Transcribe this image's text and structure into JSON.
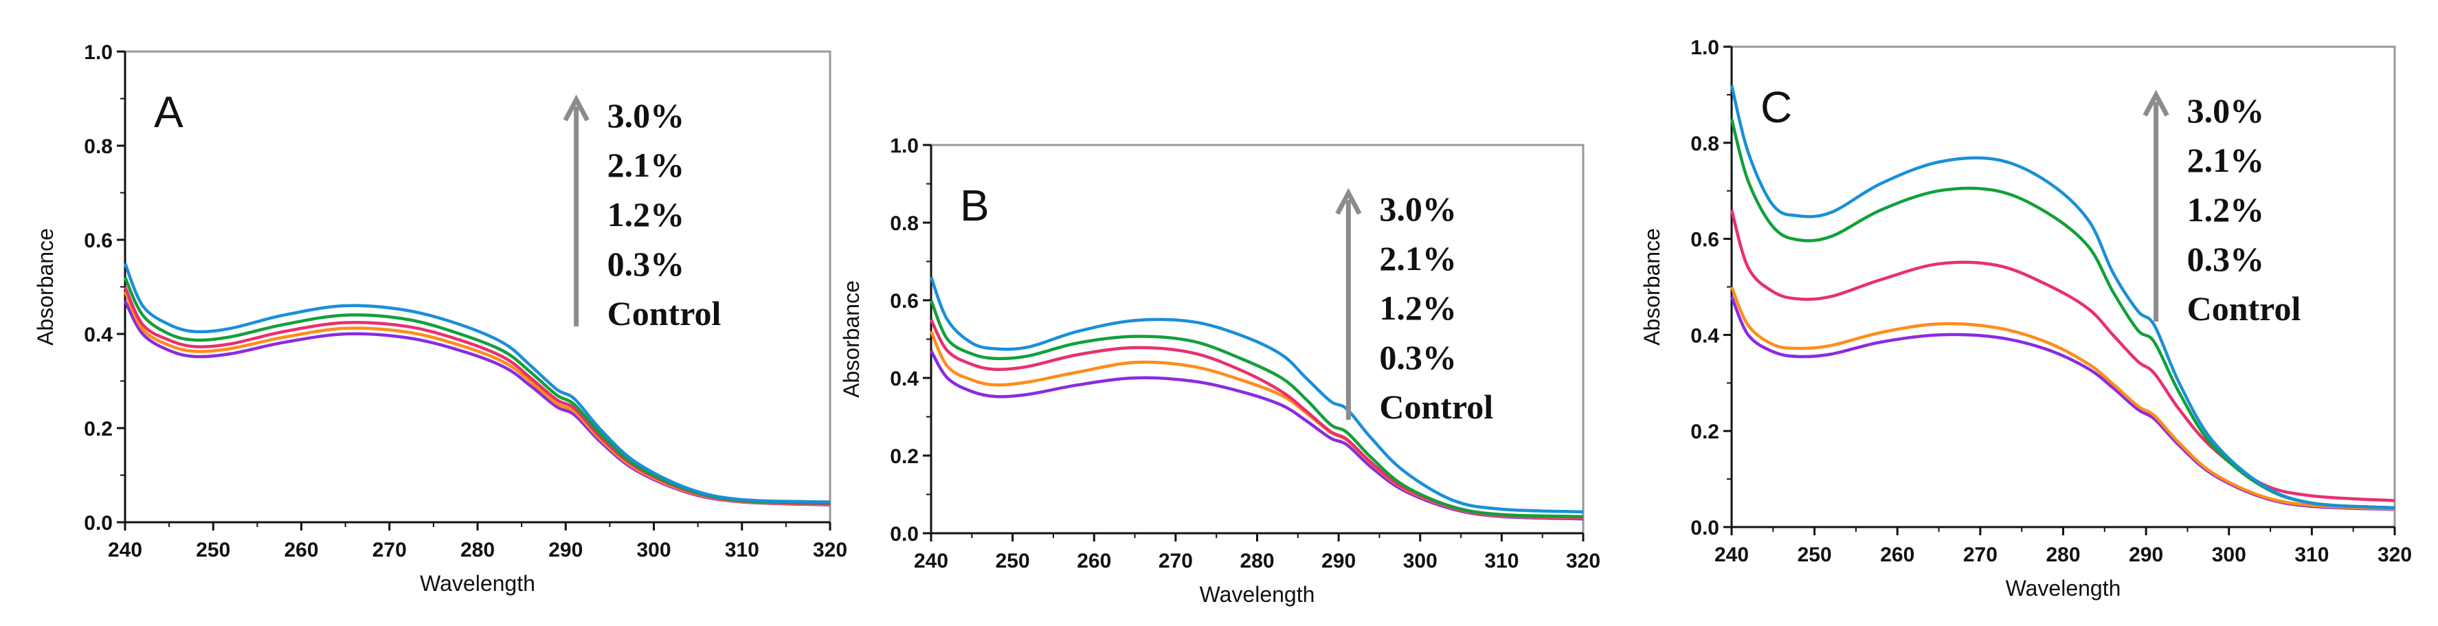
{
  "chart_data": {
    "type": "line",
    "x": [
      240,
      242,
      245,
      248,
      252,
      258,
      265,
      272,
      278,
      283,
      286,
      289,
      291,
      294,
      298,
      304,
      310,
      320
    ],
    "xlabel": "Wavelength",
    "ylabel": "Absorbance",
    "xlim": [
      240,
      320
    ],
    "ylim": [
      0,
      1.0
    ],
    "xticks": [
      "240",
      "250",
      "260",
      "270",
      "280",
      "290",
      "300",
      "310",
      "320"
    ],
    "yticks": [
      "0.0",
      "0.2",
      "0.4",
      "0.6",
      "0.8",
      "1.0"
    ],
    "legend_labels": [
      "3.0%",
      "2.1%",
      "1.2%",
      "0.3%",
      "Control"
    ],
    "legend_note": "arrow indicates increasing concentration",
    "series_colors": {
      "Control": "#8a2be2",
      "0.3%": "#ff8c1a",
      "1.2%": "#e8306e",
      "2.1%": "#12a03a",
      "3.0%": "#1a8fd8"
    },
    "arrow_color": "#8c8c8c",
    "panels": [
      {
        "label": "A",
        "series": [
          {
            "name": "Control",
            "values": [
              0.47,
              0.4,
              0.365,
              0.352,
              0.358,
              0.382,
              0.4,
              0.392,
              0.365,
              0.33,
              0.29,
              0.245,
              0.228,
              0.17,
              0.11,
              0.062,
              0.043,
              0.037
            ]
          },
          {
            "name": "0.3%",
            "values": [
              0.49,
              0.41,
              0.376,
              0.363,
              0.369,
              0.393,
              0.412,
              0.404,
              0.376,
              0.34,
              0.299,
              0.252,
              0.235,
              0.175,
              0.113,
              0.064,
              0.044,
              0.038
            ]
          },
          {
            "name": "1.2%",
            "values": [
              0.5,
              0.42,
              0.387,
              0.373,
              0.379,
              0.405,
              0.424,
              0.416,
              0.387,
              0.35,
              0.307,
              0.26,
              0.242,
              0.18,
              0.117,
              0.066,
              0.045,
              0.039
            ]
          },
          {
            "name": "2.1%",
            "values": [
              0.52,
              0.44,
              0.4,
              0.387,
              0.394,
              0.42,
              0.44,
              0.431,
              0.4,
              0.363,
              0.319,
              0.27,
              0.25,
              0.187,
              0.121,
              0.068,
              0.046,
              0.041
            ]
          },
          {
            "name": "3.0%",
            "values": [
              0.55,
              0.46,
              0.42,
              0.405,
              0.412,
              0.44,
              0.46,
              0.45,
              0.42,
              0.38,
              0.333,
              0.282,
              0.262,
              0.196,
              0.127,
              0.071,
              0.048,
              0.043
            ]
          }
        ]
      },
      {
        "label": "B",
        "series": [
          {
            "name": "Control",
            "values": [
              0.47,
              0.4,
              0.365,
              0.352,
              0.358,
              0.382,
              0.4,
              0.392,
              0.365,
              0.33,
              0.29,
              0.245,
              0.228,
              0.17,
              0.11,
              0.062,
              0.043,
              0.037
            ]
          },
          {
            "name": "0.3%",
            "values": [
              0.52,
              0.43,
              0.395,
              0.382,
              0.39,
              0.415,
              0.44,
              0.43,
              0.395,
              0.355,
              0.31,
              0.26,
              0.24,
              0.18,
              0.115,
              0.065,
              0.045,
              0.04
            ]
          },
          {
            "name": "1.2%",
            "values": [
              0.55,
              0.47,
              0.435,
              0.422,
              0.43,
              0.46,
              0.478,
              0.465,
              0.42,
              0.365,
              0.315,
              0.262,
              0.242,
              0.182,
              0.117,
              0.066,
              0.046,
              0.041
            ]
          },
          {
            "name": "2.1%",
            "values": [
              0.6,
              0.5,
              0.462,
              0.45,
              0.457,
              0.49,
              0.507,
              0.495,
              0.45,
              0.4,
              0.345,
              0.28,
              0.26,
              0.195,
              0.123,
              0.068,
              0.048,
              0.043
            ]
          },
          {
            "name": "3.0%",
            "values": [
              0.66,
              0.55,
              0.49,
              0.475,
              0.48,
              0.52,
              0.548,
              0.545,
              0.51,
              0.46,
              0.4,
              0.34,
              0.32,
              0.245,
              0.16,
              0.085,
              0.062,
              0.055
            ]
          }
        ]
      },
      {
        "label": "C",
        "series": [
          {
            "name": "Control",
            "values": [
              0.48,
              0.4,
              0.365,
              0.355,
              0.36,
              0.385,
              0.4,
              0.395,
              0.37,
              0.33,
              0.29,
              0.245,
              0.225,
              0.17,
              0.11,
              0.062,
              0.043,
              0.037
            ]
          },
          {
            "name": "0.3%",
            "values": [
              0.5,
              0.42,
              0.38,
              0.372,
              0.378,
              0.405,
              0.423,
              0.415,
              0.385,
              0.34,
              0.298,
              0.252,
              0.232,
              0.175,
              0.113,
              0.064,
              0.045,
              0.038
            ]
          },
          {
            "name": "1.2%",
            "values": [
              0.66,
              0.54,
              0.49,
              0.475,
              0.48,
              0.515,
              0.548,
              0.545,
              0.505,
              0.455,
              0.4,
              0.345,
              0.32,
              0.245,
              0.165,
              0.09,
              0.065,
              0.055
            ]
          },
          {
            "name": "2.1%",
            "values": [
              0.85,
              0.72,
              0.625,
              0.598,
              0.605,
              0.66,
              0.7,
              0.7,
              0.655,
              0.585,
              0.49,
              0.41,
              0.385,
              0.28,
              0.17,
              0.085,
              0.05,
              0.04
            ]
          },
          {
            "name": "3.0%",
            "values": [
              0.92,
              0.78,
              0.67,
              0.648,
              0.655,
              0.715,
              0.76,
              0.765,
              0.72,
              0.64,
              0.53,
              0.45,
              0.42,
              0.3,
              0.18,
              0.088,
              0.05,
              0.04
            ]
          }
        ]
      }
    ]
  }
}
